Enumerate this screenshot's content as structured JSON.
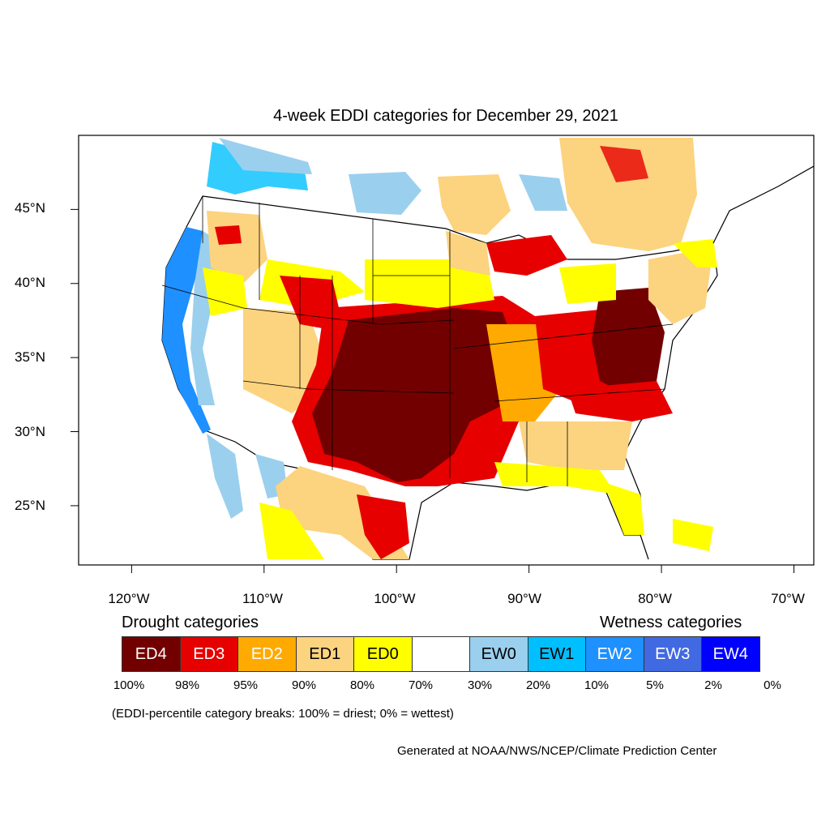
{
  "title": "4-week EDDI categories for December 29, 2021",
  "map": {
    "lat_labels": [
      "45°N",
      "40°N",
      "35°N",
      "30°N",
      "25°N"
    ],
    "lon_labels": [
      "120°W",
      "110°W",
      "100°W",
      "90°W",
      "80°W",
      "70°W"
    ],
    "lat_values": [
      45,
      40,
      35,
      30,
      25
    ],
    "lon_values": [
      -120,
      -110,
      -100,
      -90,
      -80,
      -70
    ],
    "lat_range": [
      21,
      50
    ],
    "lon_range": [
      -124,
      -68.5
    ]
  },
  "legend": {
    "drought_heading": "Drought categories",
    "wetness_heading": "Wetness categories",
    "categories": [
      {
        "label": "ED4",
        "color": "#730000",
        "text_color": "#ffffff"
      },
      {
        "label": "ED3",
        "color": "#e60000",
        "text_color": "#ffffff"
      },
      {
        "label": "ED2",
        "color": "#ffaa00",
        "text_color": "#ffffff"
      },
      {
        "label": "ED1",
        "color": "#fcd37f",
        "text_color": "#000000"
      },
      {
        "label": "ED0",
        "color": "#ffff00",
        "text_color": "#000000"
      },
      {
        "label": "",
        "color": "#ffffff",
        "text_color": "#000000"
      },
      {
        "label": "EW0",
        "color": "#9bcfee",
        "text_color": "#000000"
      },
      {
        "label": "EW1",
        "color": "#00bfff",
        "text_color": "#000000"
      },
      {
        "label": "EW2",
        "color": "#1e90ff",
        "text_color": "#ffffff"
      },
      {
        "label": "EW3",
        "color": "#4169e1",
        "text_color": "#ffffff"
      },
      {
        "label": "EW4",
        "color": "#0000ff",
        "text_color": "#ffffff"
      }
    ],
    "breaks": [
      "100%",
      "98%",
      "95%",
      "90%",
      "80%",
      "70%",
      "30%",
      "20%",
      "10%",
      "5%",
      "2%",
      "0%"
    ]
  },
  "note": "(EDDI-percentile category breaks: 100% = driest; 0% = wettest)",
  "credit": "Generated at NOAA/NWS/NCEP/Climate Prediction Center"
}
